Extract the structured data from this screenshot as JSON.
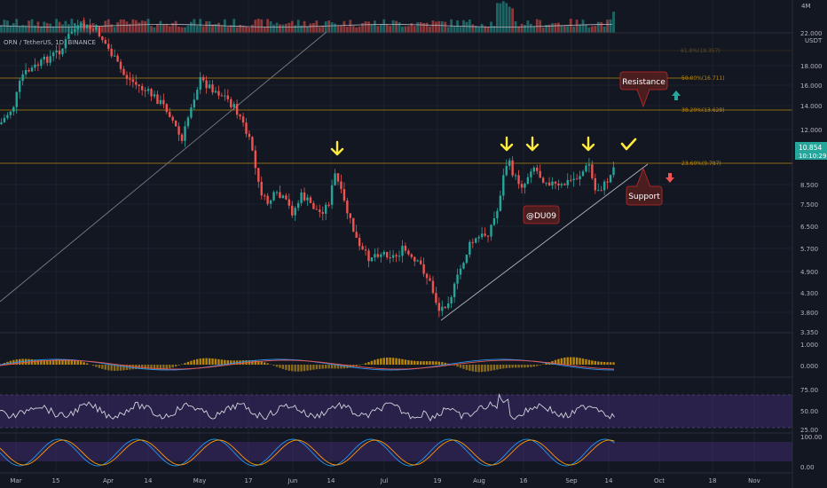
{
  "symbol": {
    "title": "ORN / TetherUS, 1D, BINANCE"
  },
  "volume": {
    "axis_label": "4M"
  },
  "price_axis": {
    "unit": "USDT",
    "ticks": [
      "22.000",
      "18.000",
      "16.000",
      "14.000",
      "12.000",
      "10.000",
      "8.500",
      "7.500",
      "6.500",
      "5.700",
      "4.900",
      "4.300",
      "3.800",
      "3.350"
    ],
    "current_price": "10.854",
    "countdown": "10:10:29"
  },
  "fib_levels": [
    {
      "label": "61.8%(18.357)",
      "price": 18.357
    },
    {
      "label": "50.00%(16.711)",
      "price": 16.711
    },
    {
      "label": "38.20%(13.628)",
      "price": 13.628
    },
    {
      "label": "23.60%(9.787)",
      "price": 9.787
    }
  ],
  "annotations": {
    "resistance": "Resistance",
    "support": "Support",
    "author": "@DU09"
  },
  "macd": {
    "ticks": [
      "1.000",
      "0.000"
    ]
  },
  "rsi": {
    "ticks": [
      "75.00",
      "50.00",
      "25.00"
    ]
  },
  "stoch": {
    "ticks": [
      "100.00",
      "0.00"
    ]
  },
  "time_axis": [
    "Mar",
    "15",
    "Apr",
    "14",
    "May",
    "17",
    "Jun",
    "14",
    "Jul",
    "19",
    "Aug",
    "16",
    "Sep",
    "14",
    "Oct",
    "18",
    "Nov"
  ],
  "colors": {
    "background": "#131722",
    "up": "#26a69a",
    "down": "#ef5350",
    "fib": "#b8860b",
    "arrow": "#ffeb3b",
    "rsi_band": "#3c2a6b"
  },
  "icons": [
    "down-arrow-icon",
    "check-icon",
    "up-arrow-icon",
    "down-arrow-red-icon"
  ]
}
